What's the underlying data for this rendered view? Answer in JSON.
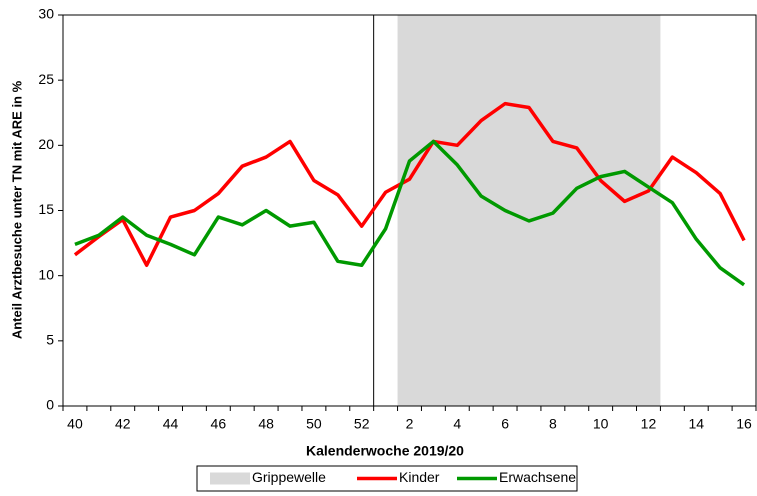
{
  "chart_data": {
    "type": "line",
    "ylabel": "Anteil Arztbesuche unter TN mit ARE  in %",
    "xlabel": "Kalenderwoche 2019/20",
    "categories": [
      "40",
      null,
      "42",
      null,
      "44",
      null,
      "46",
      null,
      "48",
      null,
      "50",
      null,
      "52",
      null,
      "2",
      null,
      "4",
      null,
      "6",
      null,
      "8",
      null,
      "10",
      null,
      "12",
      null,
      "14",
      null,
      "16"
    ],
    "band": {
      "name": "Grippewelle",
      "color": "#d9d9d9",
      "from": "2",
      "to": "12"
    },
    "series": [
      {
        "name": "Kinder",
        "color": "#ff0000",
        "values": [
          11.6,
          13.0,
          14.3,
          10.8,
          14.5,
          15.0,
          16.3,
          18.4,
          19.1,
          20.3,
          17.3,
          16.2,
          13.8,
          16.4,
          17.4,
          20.3,
          20.0,
          21.9,
          23.2,
          22.9,
          20.3,
          19.8,
          17.3,
          15.7,
          16.5,
          19.1,
          17.9,
          16.3,
          12.7
        ]
      },
      {
        "name": "Erwachsene",
        "color": "#009900",
        "values": [
          12.4,
          13.1,
          14.5,
          13.1,
          12.4,
          11.6,
          14.5,
          13.9,
          15.0,
          13.8,
          14.1,
          11.1,
          10.8,
          13.6,
          18.8,
          20.3,
          18.5,
          16.1,
          15.0,
          14.2,
          14.8,
          16.7,
          17.6,
          18.0,
          16.8,
          15.6,
          12.8,
          10.6,
          9.3
        ]
      }
    ],
    "ylim": [
      0,
      30
    ],
    "yticks": [
      0,
      5,
      10,
      15,
      20,
      25,
      30
    ]
  }
}
